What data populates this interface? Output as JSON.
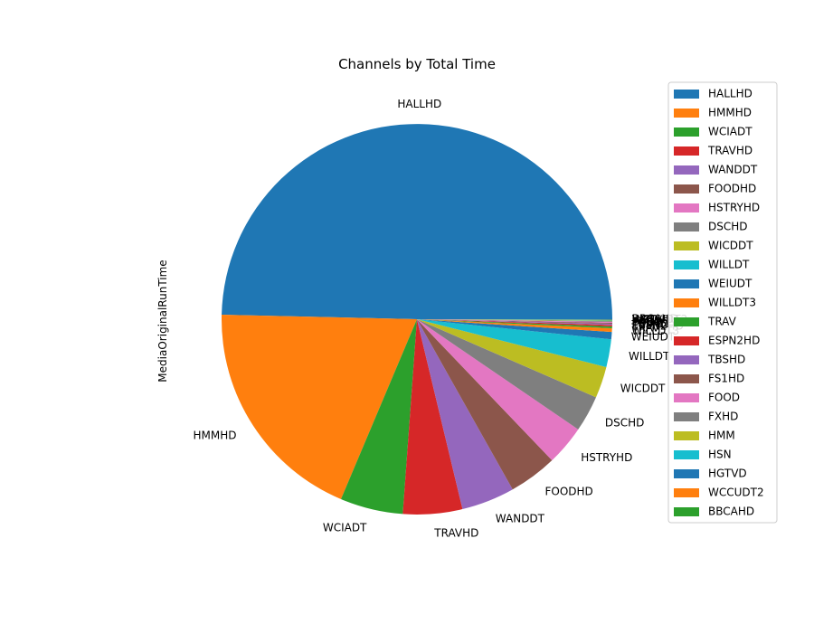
{
  "chart_data": {
    "type": "pie",
    "title": "Channels by Total Time",
    "ylabel": "MediaOriginalRunTime",
    "start_angle_deg": 0,
    "direction": "counterclockwise",
    "legend_position": "right",
    "slices": [
      {
        "label": "HALLHD",
        "value": 49.6,
        "color": "#1f77b4"
      },
      {
        "label": "HMMHD",
        "value": 19.0,
        "color": "#ff7f0e"
      },
      {
        "label": "WCIADT",
        "value": 5.2,
        "color": "#2ca02c"
      },
      {
        "label": "TRAVHD",
        "value": 4.9,
        "color": "#d62728"
      },
      {
        "label": "WANDDT",
        "value": 4.4,
        "color": "#9467bd"
      },
      {
        "label": "FOODHD",
        "value": 4.0,
        "color": "#8c564b"
      },
      {
        "label": "HSTRYHD",
        "value": 3.3,
        "color": "#e377c2"
      },
      {
        "label": "DSCHD",
        "value": 3.0,
        "color": "#7f7f7f"
      },
      {
        "label": "WICDDT",
        "value": 2.6,
        "color": "#bcbd22"
      },
      {
        "label": "WILLDT",
        "value": 2.3,
        "color": "#17becf"
      },
      {
        "label": "WEIUDT",
        "value": 0.6,
        "color": "#1f77b4"
      },
      {
        "label": "WILLDT3",
        "value": 0.3,
        "color": "#ff7f0e"
      },
      {
        "label": "TRAV",
        "value": 0.15,
        "color": "#2ca02c"
      },
      {
        "label": "ESPN2HD",
        "value": 0.12,
        "color": "#d62728"
      },
      {
        "label": "TBSHD",
        "value": 0.1,
        "color": "#9467bd"
      },
      {
        "label": "FS1HD",
        "value": 0.08,
        "color": "#8c564b"
      },
      {
        "label": "FOOD",
        "value": 0.07,
        "color": "#e377c2"
      },
      {
        "label": "FXHD",
        "value": 0.06,
        "color": "#7f7f7f"
      },
      {
        "label": "HMM",
        "value": 0.05,
        "color": "#bcbd22"
      },
      {
        "label": "HSN",
        "value": 0.04,
        "color": "#17becf"
      },
      {
        "label": "HGTVD",
        "value": 0.03,
        "color": "#1f77b4"
      },
      {
        "label": "WCCUDT2",
        "value": 0.02,
        "color": "#ff7f0e"
      },
      {
        "label": "BBCAHD",
        "value": 0.02,
        "color": "#2ca02c"
      }
    ]
  }
}
